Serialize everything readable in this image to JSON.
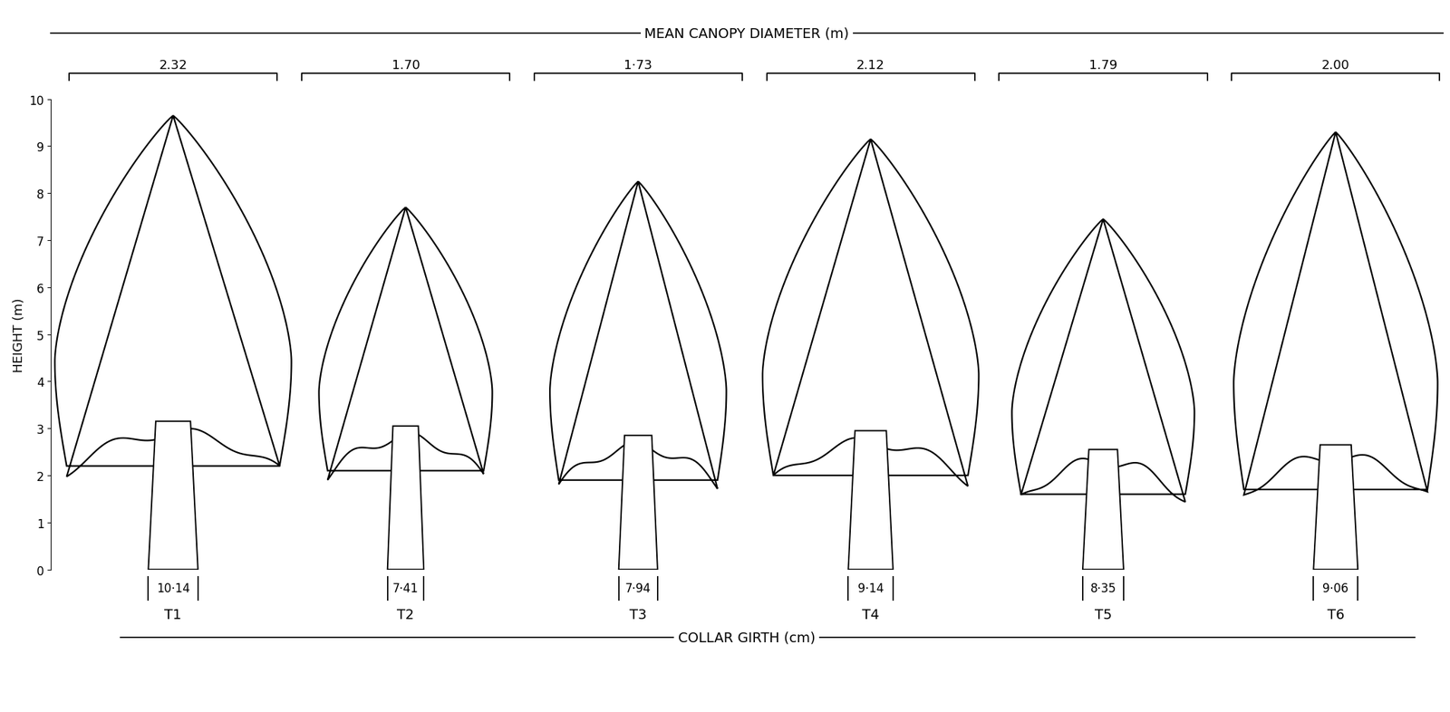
{
  "chart_data": {
    "type": "tree_profile",
    "y_label": "HEIGHT (m)",
    "categories": [
      "T1",
      "T2",
      "T3",
      "T4",
      "T5",
      "T6"
    ],
    "values": [
      9.65,
      7.7,
      8.25,
      9.15,
      7.45,
      9.3
    ],
    "crown_base": [
      1.9,
      1.8,
      1.6,
      1.7,
      1.3,
      1.4
    ],
    "canopy_diameter": {
      "title": "MEAN CANOPY DIAMETER (m)",
      "values": [
        2.32,
        1.7,
        1.73,
        2.12,
        1.79,
        2.0
      ],
      "value_labels": [
        "2.32",
        "1.70",
        "1·73",
        "2.12",
        "1.79",
        "2.00"
      ]
    },
    "collar_girth": {
      "title": "COLLAR GIRTH (cm)",
      "values": [
        10.14,
        7.41,
        7.94,
        9.14,
        8.35,
        9.06
      ],
      "value_labels": [
        "10·14",
        "7·41",
        "7·94",
        "9·14",
        "8·35",
        "9·06"
      ]
    },
    "ylim": [
      0,
      10
    ],
    "yticks": [
      0,
      1,
      2,
      3,
      4,
      5,
      6,
      7,
      8,
      9,
      10
    ],
    "tick_labels": "y"
  }
}
